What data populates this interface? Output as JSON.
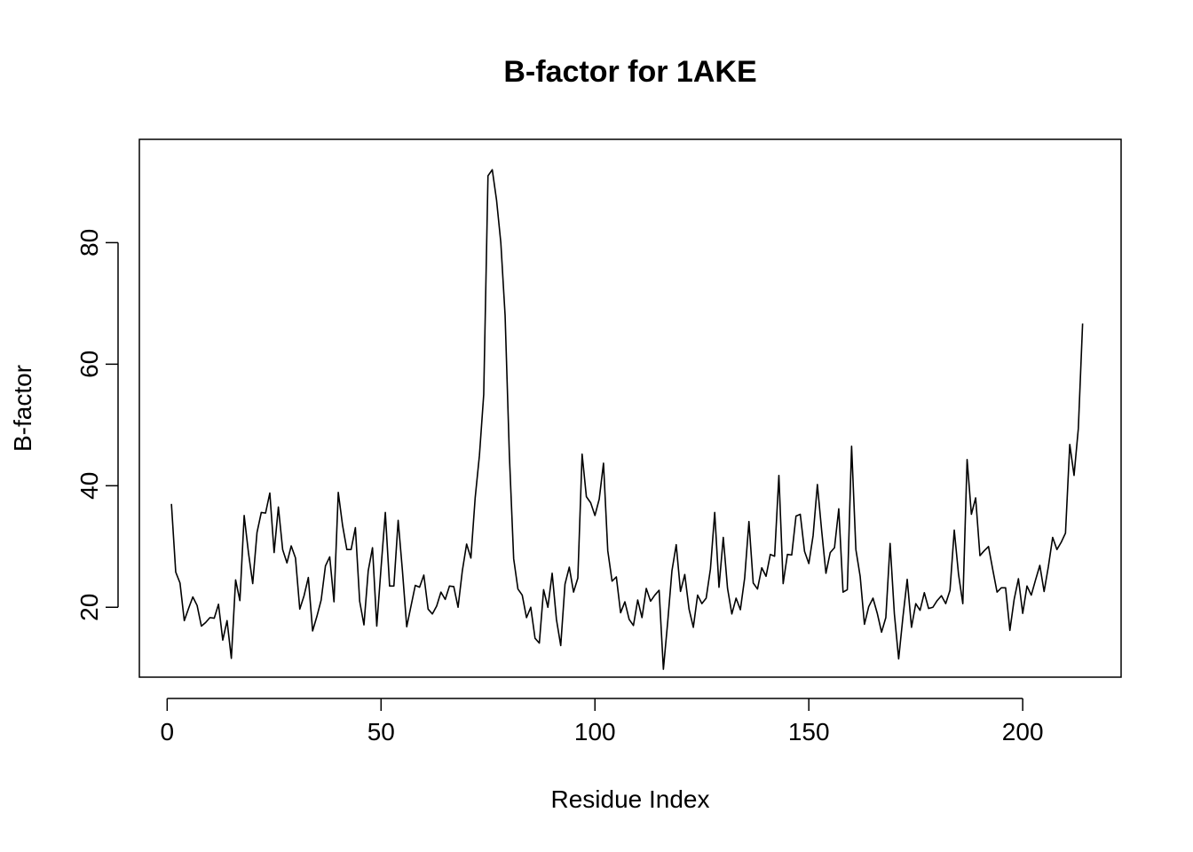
{
  "chart_data": {
    "type": "line",
    "title": "B-factor for 1AKE",
    "xlabel": "Residue Index",
    "ylabel": "B-factor",
    "xlim": [
      -6.5,
      223
    ],
    "ylim": [
      8.5,
      97
    ],
    "xticks": [
      0,
      50,
      100,
      150,
      200
    ],
    "yticks": [
      20,
      40,
      60,
      80
    ],
    "grid": false,
    "line_color": "#000000",
    "series": [
      {
        "x": [
          1,
          2,
          3,
          4,
          5,
          6,
          7,
          8,
          9,
          10,
          11,
          12,
          13,
          14,
          15,
          16,
          17,
          18,
          19,
          20,
          21,
          22,
          23,
          24,
          25,
          26,
          27,
          28,
          29,
          30,
          31,
          32,
          33,
          34,
          35,
          36,
          37,
          38,
          39,
          40,
          41,
          42,
          43,
          44,
          45,
          46,
          47,
          48,
          49,
          50,
          51,
          52,
          53,
          54,
          55,
          56,
          57,
          58,
          59,
          60,
          61,
          62,
          63,
          64,
          65,
          66,
          67,
          68,
          69,
          70,
          71,
          72,
          73,
          74,
          75,
          76,
          77,
          78,
          79,
          80,
          81,
          82,
          83,
          84,
          85,
          86,
          87,
          88,
          89,
          90,
          91,
          92,
          93,
          94,
          95,
          96,
          97,
          98,
          99,
          100,
          101,
          102,
          103,
          104,
          105,
          106,
          107,
          108,
          109,
          110,
          111,
          112,
          113,
          114,
          115,
          116,
          117,
          118,
          119,
          120,
          121,
          122,
          123,
          124,
          125,
          126,
          127,
          128,
          129,
          130,
          131,
          132,
          133,
          134,
          135,
          136,
          137,
          138,
          139,
          140,
          141,
          142,
          143,
          144,
          145,
          146,
          147,
          148,
          149,
          150,
          151,
          152,
          153,
          154,
          155,
          156,
          157,
          158,
          159,
          160,
          161,
          162,
          163,
          164,
          165,
          166,
          167,
          168,
          169,
          170,
          171,
          172,
          173,
          174,
          175,
          176,
          177,
          178,
          179,
          180,
          181,
          182,
          183,
          184,
          185,
          186,
          187,
          188,
          189,
          190,
          191,
          192,
          193,
          194,
          195,
          196,
          197,
          198,
          199,
          200,
          201,
          202,
          203,
          204,
          205,
          206,
          207,
          208,
          209,
          210,
          211,
          212,
          213,
          214
        ],
        "values": [
          37.0,
          25.8,
          24.0,
          17.8,
          19.8,
          21.7,
          20.3,
          16.9,
          17.5,
          18.3,
          18.2,
          20.5,
          14.6,
          17.8,
          11.6,
          24.5,
          21.1,
          35.1,
          29.0,
          23.9,
          32.3,
          35.6,
          35.5,
          38.8,
          29.0,
          36.5,
          29.5,
          27.3,
          30.1,
          28.1,
          19.7,
          21.9,
          24.9,
          16.1,
          18.5,
          21.2,
          26.8,
          28.3,
          20.9,
          38.9,
          33.5,
          29.5,
          29.5,
          33.1,
          21.0,
          17.1,
          26.0,
          29.8,
          16.9,
          26.5,
          35.6,
          23.5,
          23.5,
          34.3,
          26.0,
          16.8,
          20.2,
          23.6,
          23.3,
          25.3,
          19.7,
          18.9,
          20.2,
          22.5,
          21.3,
          23.5,
          23.4,
          20.0,
          26.0,
          30.4,
          28.1,
          38.0,
          45.0,
          55.0,
          91.0,
          92.0,
          87.0,
          80.0,
          68.0,
          45.0,
          28.0,
          23.0,
          22.0,
          18.3,
          20.0,
          14.9,
          14.1,
          22.9,
          20.0,
          25.6,
          18.0,
          13.7,
          23.8,
          26.6,
          22.5,
          24.8,
          45.2,
          38.2,
          37.2,
          35.1,
          37.8,
          43.7,
          29.3,
          24.3,
          25.0,
          19.1,
          20.9,
          18.0,
          17.0,
          21.2,
          18.3,
          23.1,
          21.0,
          22.0,
          22.8,
          9.8,
          17.5,
          26.0,
          30.3,
          22.6,
          25.4,
          19.7,
          16.7,
          22.0,
          20.6,
          21.5,
          26.3,
          35.6,
          23.3,
          31.5,
          23.1,
          18.9,
          21.5,
          19.6,
          24.8,
          34.1,
          24.0,
          23.0,
          26.5,
          25.1,
          28.7,
          28.4,
          41.7,
          23.9,
          28.7,
          28.6,
          35.0,
          35.3,
          29.2,
          27.2,
          31.8,
          40.2,
          32.6,
          25.6,
          29.0,
          29.8,
          36.2,
          22.5,
          22.9,
          46.5,
          29.5,
          25.1,
          17.2,
          20.1,
          21.5,
          19.0,
          15.9,
          18.3,
          30.5,
          18.9,
          11.5,
          18.4,
          24.6,
          16.7,
          20.6,
          19.5,
          22.4,
          19.8,
          20.0,
          21.1,
          21.9,
          20.6,
          22.8,
          32.7,
          25.4,
          20.6,
          44.3,
          35.3,
          38.0,
          28.5,
          29.3,
          30.0,
          26.2,
          22.5,
          23.2,
          23.2,
          16.2,
          21.3,
          24.7,
          19.0,
          23.5,
          22.0,
          24.5,
          26.9,
          22.6,
          26.7,
          31.5,
          29.5,
          30.7,
          32.2,
          46.8,
          41.7,
          49.4,
          66.7
        ]
      }
    ]
  }
}
